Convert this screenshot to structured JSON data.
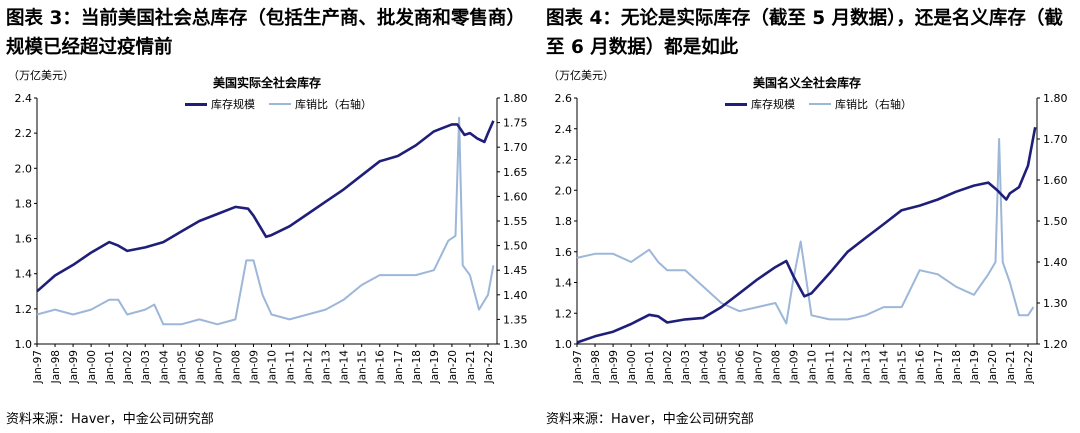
{
  "panels": [
    {
      "figure_title": "图表 3：当前美国社会总库存（包括生产商、批发商和零售商）规模已经超过疫情前",
      "source": "资料来源：Haver，中金公司研究部",
      "chart_data": {
        "type": "line",
        "title": "美国实际全社会库存",
        "ylabel": "（万亿美元）",
        "ylim": [
          1.0,
          2.4
        ],
        "yticks": [
          "1.0",
          "1.2",
          "1.4",
          "1.6",
          "1.8",
          "2.0",
          "2.2",
          "2.4"
        ],
        "y2lim": [
          1.3,
          1.8
        ],
        "y2ticks": [
          "1.30",
          "1.35",
          "1.40",
          "1.45",
          "1.50",
          "1.55",
          "1.60",
          "1.65",
          "1.70",
          "1.75",
          "1.80"
        ],
        "xlim": [
          1997.0,
          2022.5
        ],
        "xticks": [
          "Jan-97",
          "Jan-98",
          "Jan-99",
          "Jan-00",
          "Jan-01",
          "Jan-02",
          "Jan-03",
          "Jan-04",
          "Jan-05",
          "Jan-06",
          "Jan-07",
          "Jan-08",
          "Jan-09",
          "Jan-10",
          "Jan-11",
          "Jan-12",
          "Jan-13",
          "Jan-14",
          "Jan-15",
          "Jan-16",
          "Jan-17",
          "Jan-18",
          "Jan-19",
          "Jan-20",
          "Jan-21",
          "Jan-22"
        ],
        "legend_position": "top-center",
        "series": [
          {
            "name": "库存规模",
            "axis": "left",
            "color": "#1f1f7a",
            "x": [
              1997.0,
              1998.0,
              1999.0,
              2000.0,
              2001.0,
              2001.5,
              2002.0,
              2003.0,
              2004.0,
              2005.0,
              2006.0,
              2007.0,
              2008.0,
              2008.7,
              2009.0,
              2009.7,
              2010.0,
              2011.0,
              2012.0,
              2013.0,
              2014.0,
              2015.0,
              2016.0,
              2017.0,
              2018.0,
              2019.0,
              2020.0,
              2020.3,
              2020.7,
              2021.0,
              2021.4,
              2021.8,
              2022.0,
              2022.3
            ],
            "y": [
              1.3,
              1.39,
              1.45,
              1.52,
              1.58,
              1.56,
              1.53,
              1.55,
              1.58,
              1.64,
              1.7,
              1.74,
              1.78,
              1.77,
              1.73,
              1.61,
              1.62,
              1.67,
              1.74,
              1.81,
              1.88,
              1.96,
              2.04,
              2.07,
              2.13,
              2.21,
              2.25,
              2.25,
              2.19,
              2.2,
              2.17,
              2.15,
              2.2,
              2.27
            ]
          },
          {
            "name": "库销比（右轴）",
            "axis": "right",
            "color": "#9db7d9",
            "x": [
              1997.0,
              1998.0,
              1999.0,
              2000.0,
              2001.0,
              2001.5,
              2002.0,
              2003.0,
              2003.5,
              2004.0,
              2005.0,
              2006.0,
              2007.0,
              2008.0,
              2008.6,
              2009.0,
              2009.5,
              2010.0,
              2011.0,
              2012.0,
              2013.0,
              2014.0,
              2015.0,
              2016.0,
              2017.0,
              2018.0,
              2019.0,
              2019.8,
              2020.2,
              2020.4,
              2020.6,
              2021.0,
              2021.5,
              2022.0,
              2022.3
            ],
            "y": [
              1.36,
              1.37,
              1.36,
              1.37,
              1.39,
              1.39,
              1.36,
              1.37,
              1.38,
              1.34,
              1.34,
              1.35,
              1.34,
              1.35,
              1.47,
              1.47,
              1.4,
              1.36,
              1.35,
              1.36,
              1.37,
              1.39,
              1.42,
              1.44,
              1.44,
              1.44,
              1.45,
              1.51,
              1.52,
              1.76,
              1.46,
              1.44,
              1.37,
              1.4,
              1.46
            ]
          }
        ]
      }
    },
    {
      "figure_title": "图表 4：无论是实际库存（截至 5 月数据），还是名义库存（截至 6 月数据）都是如此",
      "source": "资料来源：Haver，中金公司研究部",
      "chart_data": {
        "type": "line",
        "title": "美国名义全社会库存",
        "ylabel": "（万亿美元）",
        "ylim": [
          1.0,
          2.6
        ],
        "yticks": [
          "1.0",
          "1.2",
          "1.4",
          "1.6",
          "1.8",
          "2.0",
          "2.2",
          "2.4",
          "2.6"
        ],
        "y2lim": [
          1.2,
          1.8
        ],
        "y2ticks": [
          "1.20",
          "1.30",
          "1.40",
          "1.50",
          "1.60",
          "1.70",
          "1.80"
        ],
        "xlim": [
          1997.0,
          2022.5
        ],
        "xticks": [
          "Jan-97",
          "Jan-98",
          "Jan-99",
          "Jan-00",
          "Jan-01",
          "Jan-02",
          "Jan-03",
          "Jan-04",
          "Jan-05",
          "Jan-06",
          "Jan-07",
          "Jan-08",
          "Jan-09",
          "Jan-10",
          "Jan-11",
          "Jan-12",
          "Jan-13",
          "Jan-14",
          "Jan-15",
          "Jan-16",
          "Jan-17",
          "Jan-18",
          "Jan-19",
          "Jan-20",
          "Jan-21",
          "Jan-22"
        ],
        "legend_position": "top-center",
        "series": [
          {
            "name": "库存规模",
            "axis": "left",
            "color": "#1f1f7a",
            "x": [
              1997.0,
              1998.0,
              1999.0,
              2000.0,
              2001.0,
              2001.5,
              2002.0,
              2003.0,
              2004.0,
              2005.0,
              2006.0,
              2007.0,
              2008.0,
              2008.6,
              2009.0,
              2009.6,
              2010.0,
              2011.0,
              2012.0,
              2013.0,
              2014.0,
              2015.0,
              2016.0,
              2017.0,
              2018.0,
              2019.0,
              2019.8,
              2020.3,
              2020.8,
              2021.0,
              2021.5,
              2022.0,
              2022.4
            ],
            "y": [
              1.01,
              1.05,
              1.08,
              1.13,
              1.19,
              1.18,
              1.14,
              1.16,
              1.17,
              1.24,
              1.33,
              1.42,
              1.5,
              1.54,
              1.44,
              1.31,
              1.33,
              1.46,
              1.6,
              1.69,
              1.78,
              1.87,
              1.9,
              1.94,
              1.99,
              2.03,
              2.05,
              2.0,
              1.94,
              1.98,
              2.02,
              2.16,
              2.41
            ]
          },
          {
            "name": "库销比（右轴）",
            "axis": "right",
            "color": "#9db7d9",
            "x": [
              1997.0,
              1998.0,
              1999.0,
              2000.0,
              2001.0,
              2001.5,
              2002.0,
              2003.0,
              2004.0,
              2005.0,
              2006.0,
              2007.0,
              2008.0,
              2008.6,
              2009.0,
              2009.4,
              2010.0,
              2011.0,
              2012.0,
              2013.0,
              2014.0,
              2015.0,
              2016.0,
              2017.0,
              2018.0,
              2019.0,
              2019.8,
              2020.2,
              2020.4,
              2020.6,
              2021.0,
              2021.5,
              2022.0,
              2022.3
            ],
            "y": [
              1.41,
              1.42,
              1.42,
              1.4,
              1.43,
              1.4,
              1.38,
              1.38,
              1.34,
              1.3,
              1.28,
              1.29,
              1.3,
              1.25,
              1.36,
              1.45,
              1.27,
              1.26,
              1.26,
              1.27,
              1.29,
              1.29,
              1.38,
              1.37,
              1.34,
              1.32,
              1.37,
              1.4,
              1.7,
              1.4,
              1.35,
              1.27,
              1.27,
              1.29
            ]
          }
        ]
      }
    }
  ]
}
